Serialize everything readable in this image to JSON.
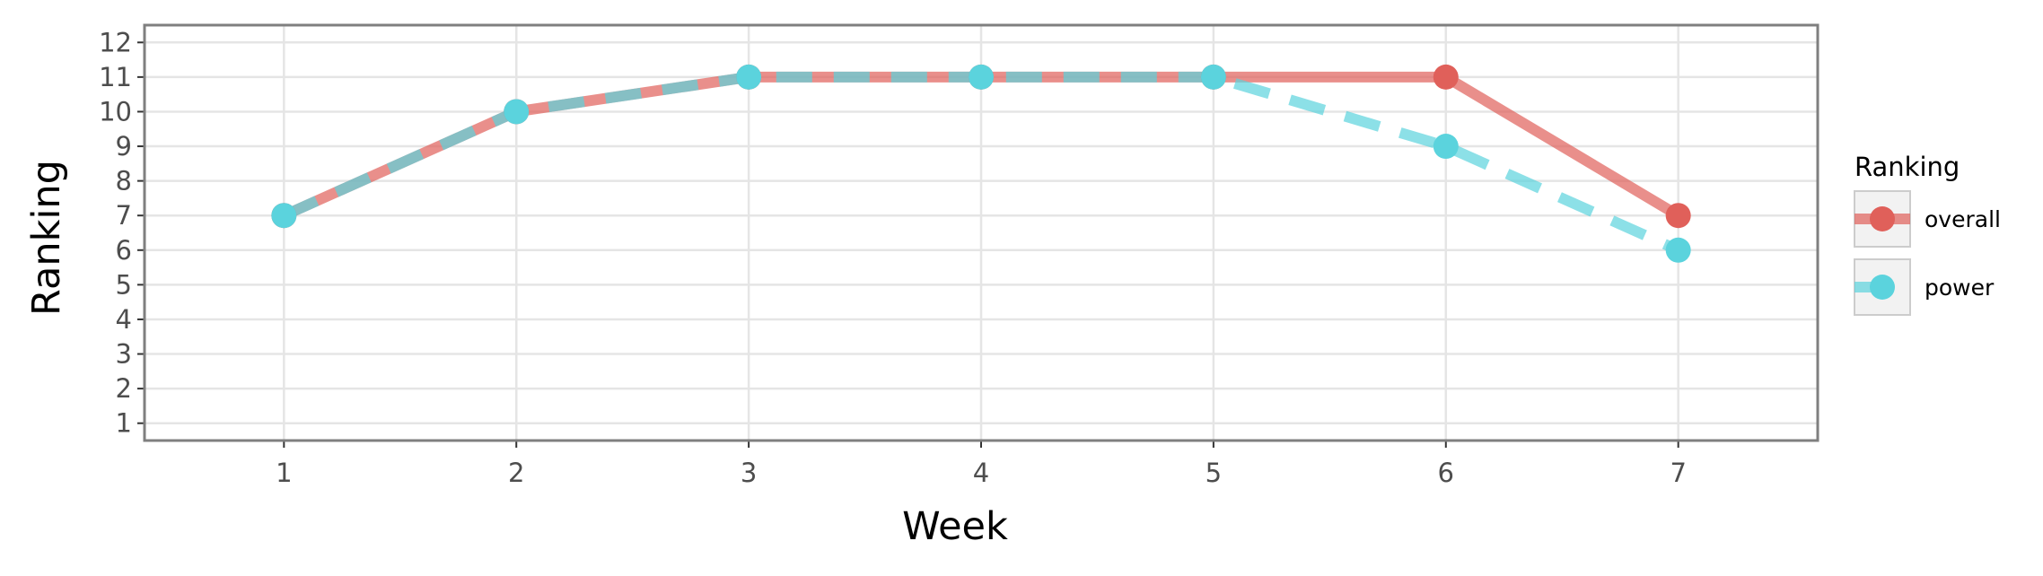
{
  "chart_data": {
    "type": "line",
    "xlabel": "Week",
    "ylabel": "Ranking",
    "x": [
      1,
      2,
      3,
      4,
      5,
      6,
      7
    ],
    "xlim": [
      0.4,
      7.6
    ],
    "ylim": [
      12.5,
      0.5
    ],
    "y_reversed": true,
    "x_ticks": [
      "1",
      "2",
      "3",
      "4",
      "5",
      "6",
      "7"
    ],
    "y_ticks": [
      "1",
      "2",
      "3",
      "4",
      "5",
      "6",
      "7",
      "8",
      "9",
      "10",
      "11",
      "12"
    ],
    "grid": true,
    "legend": {
      "title": "Ranking",
      "position": "right"
    },
    "series": [
      {
        "name": "overall",
        "values": [
          7,
          10,
          11,
          11,
          11,
          11,
          7
        ],
        "color": "#e0605a",
        "line_style": "solid"
      },
      {
        "name": "power",
        "values": [
          7,
          10,
          11,
          11,
          11,
          9,
          6
        ],
        "color": "#5bd3dd",
        "line_style": "dashed"
      }
    ]
  }
}
